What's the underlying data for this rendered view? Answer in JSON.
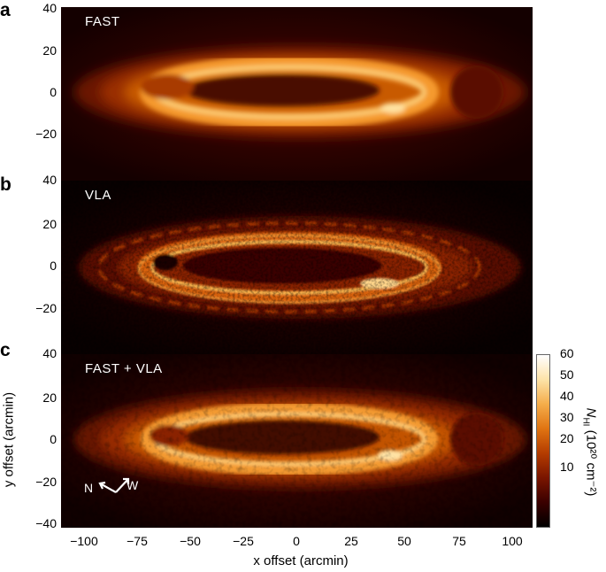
{
  "figure": {
    "panels": [
      {
        "letter": "a",
        "title": "FAST"
      },
      {
        "letter": "b",
        "title": "VLA"
      },
      {
        "letter": "c",
        "title": "FAST + VLA"
      }
    ],
    "y_ticks": [
      "40",
      "20",
      "0",
      "−20",
      "−40"
    ],
    "x_ticks": [
      "−100",
      "−75",
      "−50",
      "−25",
      "0",
      "25",
      "50",
      "75",
      "100"
    ],
    "x_label": "x offset (arcmin)",
    "y_label": "y offset (arcmin)",
    "colorbar": {
      "ticks": [
        "60",
        "50",
        "40",
        "30",
        "20",
        "10"
      ],
      "label_symbol": "N",
      "label_sub": "HI",
      "label_units": "(10²⁰ cm⁻²)",
      "colors": [
        "#000000",
        "#3a0000",
        "#7a1500",
        "#b43c00",
        "#e07412",
        "#f5ad4a",
        "#fde3a8",
        "#ffffff"
      ]
    },
    "compass": {
      "north": "N",
      "west": "W"
    }
  }
}
